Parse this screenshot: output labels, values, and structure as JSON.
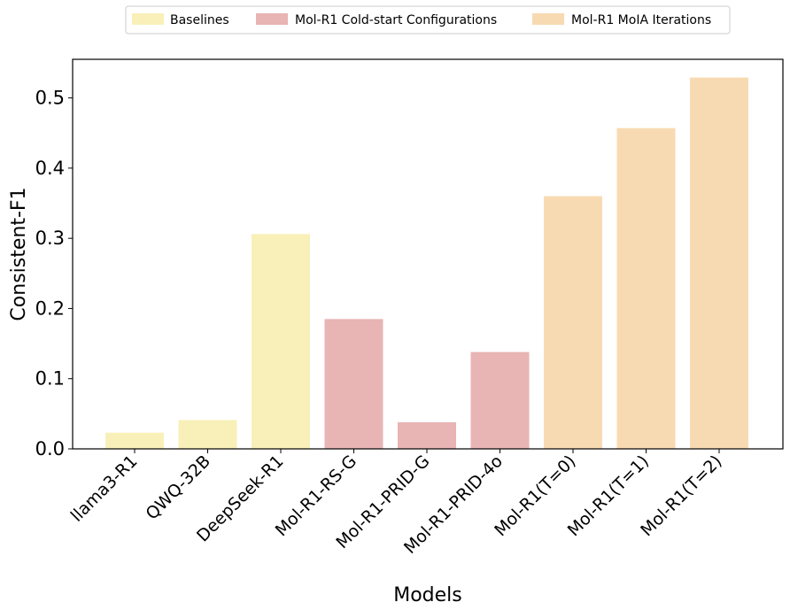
{
  "chart_data": {
    "type": "bar",
    "xlabel": "Models",
    "ylabel": "Consistent-F1",
    "ylim": [
      0,
      0.555
    ],
    "yticks": [
      "0.0",
      "0.1",
      "0.2",
      "0.3",
      "0.4",
      "0.5"
    ],
    "grid": false,
    "legend_position": "top-center",
    "categories": [
      "llama3-R1",
      "QWQ-32B",
      "DeepSeek-R1",
      "Mol-R1-RS-G",
      "Mol-R1-PRID-G",
      "Mol-R1-PRID-4o",
      "Mol-R1(T=0)",
      "Mol-R1(T=1)",
      "Mol-R1(T=2)"
    ],
    "values": [
      0.023,
      0.041,
      0.306,
      0.185,
      0.038,
      0.138,
      0.36,
      0.457,
      0.529
    ],
    "groups": [
      0,
      0,
      0,
      1,
      1,
      1,
      2,
      2,
      2
    ],
    "legend": [
      {
        "label": "Baselines",
        "color": "#f8f0b8"
      },
      {
        "label": "Mol-R1 Cold-start Configurations",
        "color": "#e8b4b4"
      },
      {
        "label": "Mol-R1 MoIA Iterations",
        "color": "#f8dab2"
      }
    ]
  }
}
